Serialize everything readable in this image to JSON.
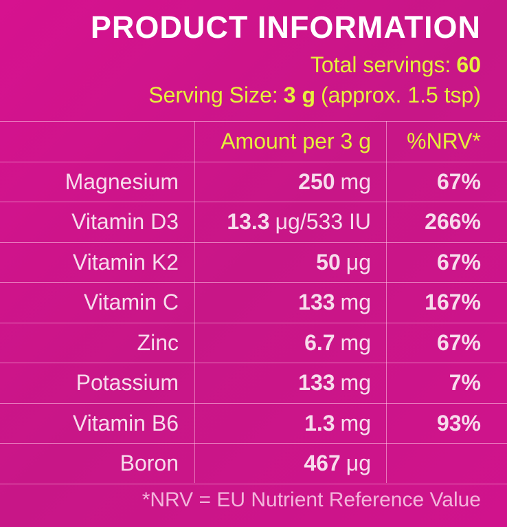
{
  "header": {
    "title": "PRODUCT INFORMATION",
    "total_servings": {
      "label": "Total servings:",
      "value": "60"
    },
    "serving_size": {
      "label": "Serving Size:",
      "value": "3 g",
      "note": "(approx. 1.5 tsp)"
    }
  },
  "table": {
    "columns": [
      "Amount per 3 g",
      "%NRV*"
    ],
    "rows": [
      {
        "nutrient": "Magnesium",
        "amount": "250",
        "unit": "mg",
        "nrv": "67%"
      },
      {
        "nutrient": "Vitamin D3",
        "amount": "13.3",
        "unit": "μg/533 IU",
        "nrv": "266%"
      },
      {
        "nutrient": "Vitamin K2",
        "amount": "50",
        "unit": "μg",
        "nrv": "67%"
      },
      {
        "nutrient": "Vitamin C",
        "amount": "133",
        "unit": "mg",
        "nrv": "167%"
      },
      {
        "nutrient": "Zinc",
        "amount": "6.7",
        "unit": "mg",
        "nrv": "67%"
      },
      {
        "nutrient": "Potassium",
        "amount": "133",
        "unit": "mg",
        "nrv": "7%"
      },
      {
        "nutrient": "Vitamin B6",
        "amount": "1.3",
        "unit": "mg",
        "nrv": "93%"
      },
      {
        "nutrient": "Boron",
        "amount": "467",
        "unit": "μg"
      }
    ]
  },
  "footer": "*NRV = EU Nutrient Reference Value"
}
